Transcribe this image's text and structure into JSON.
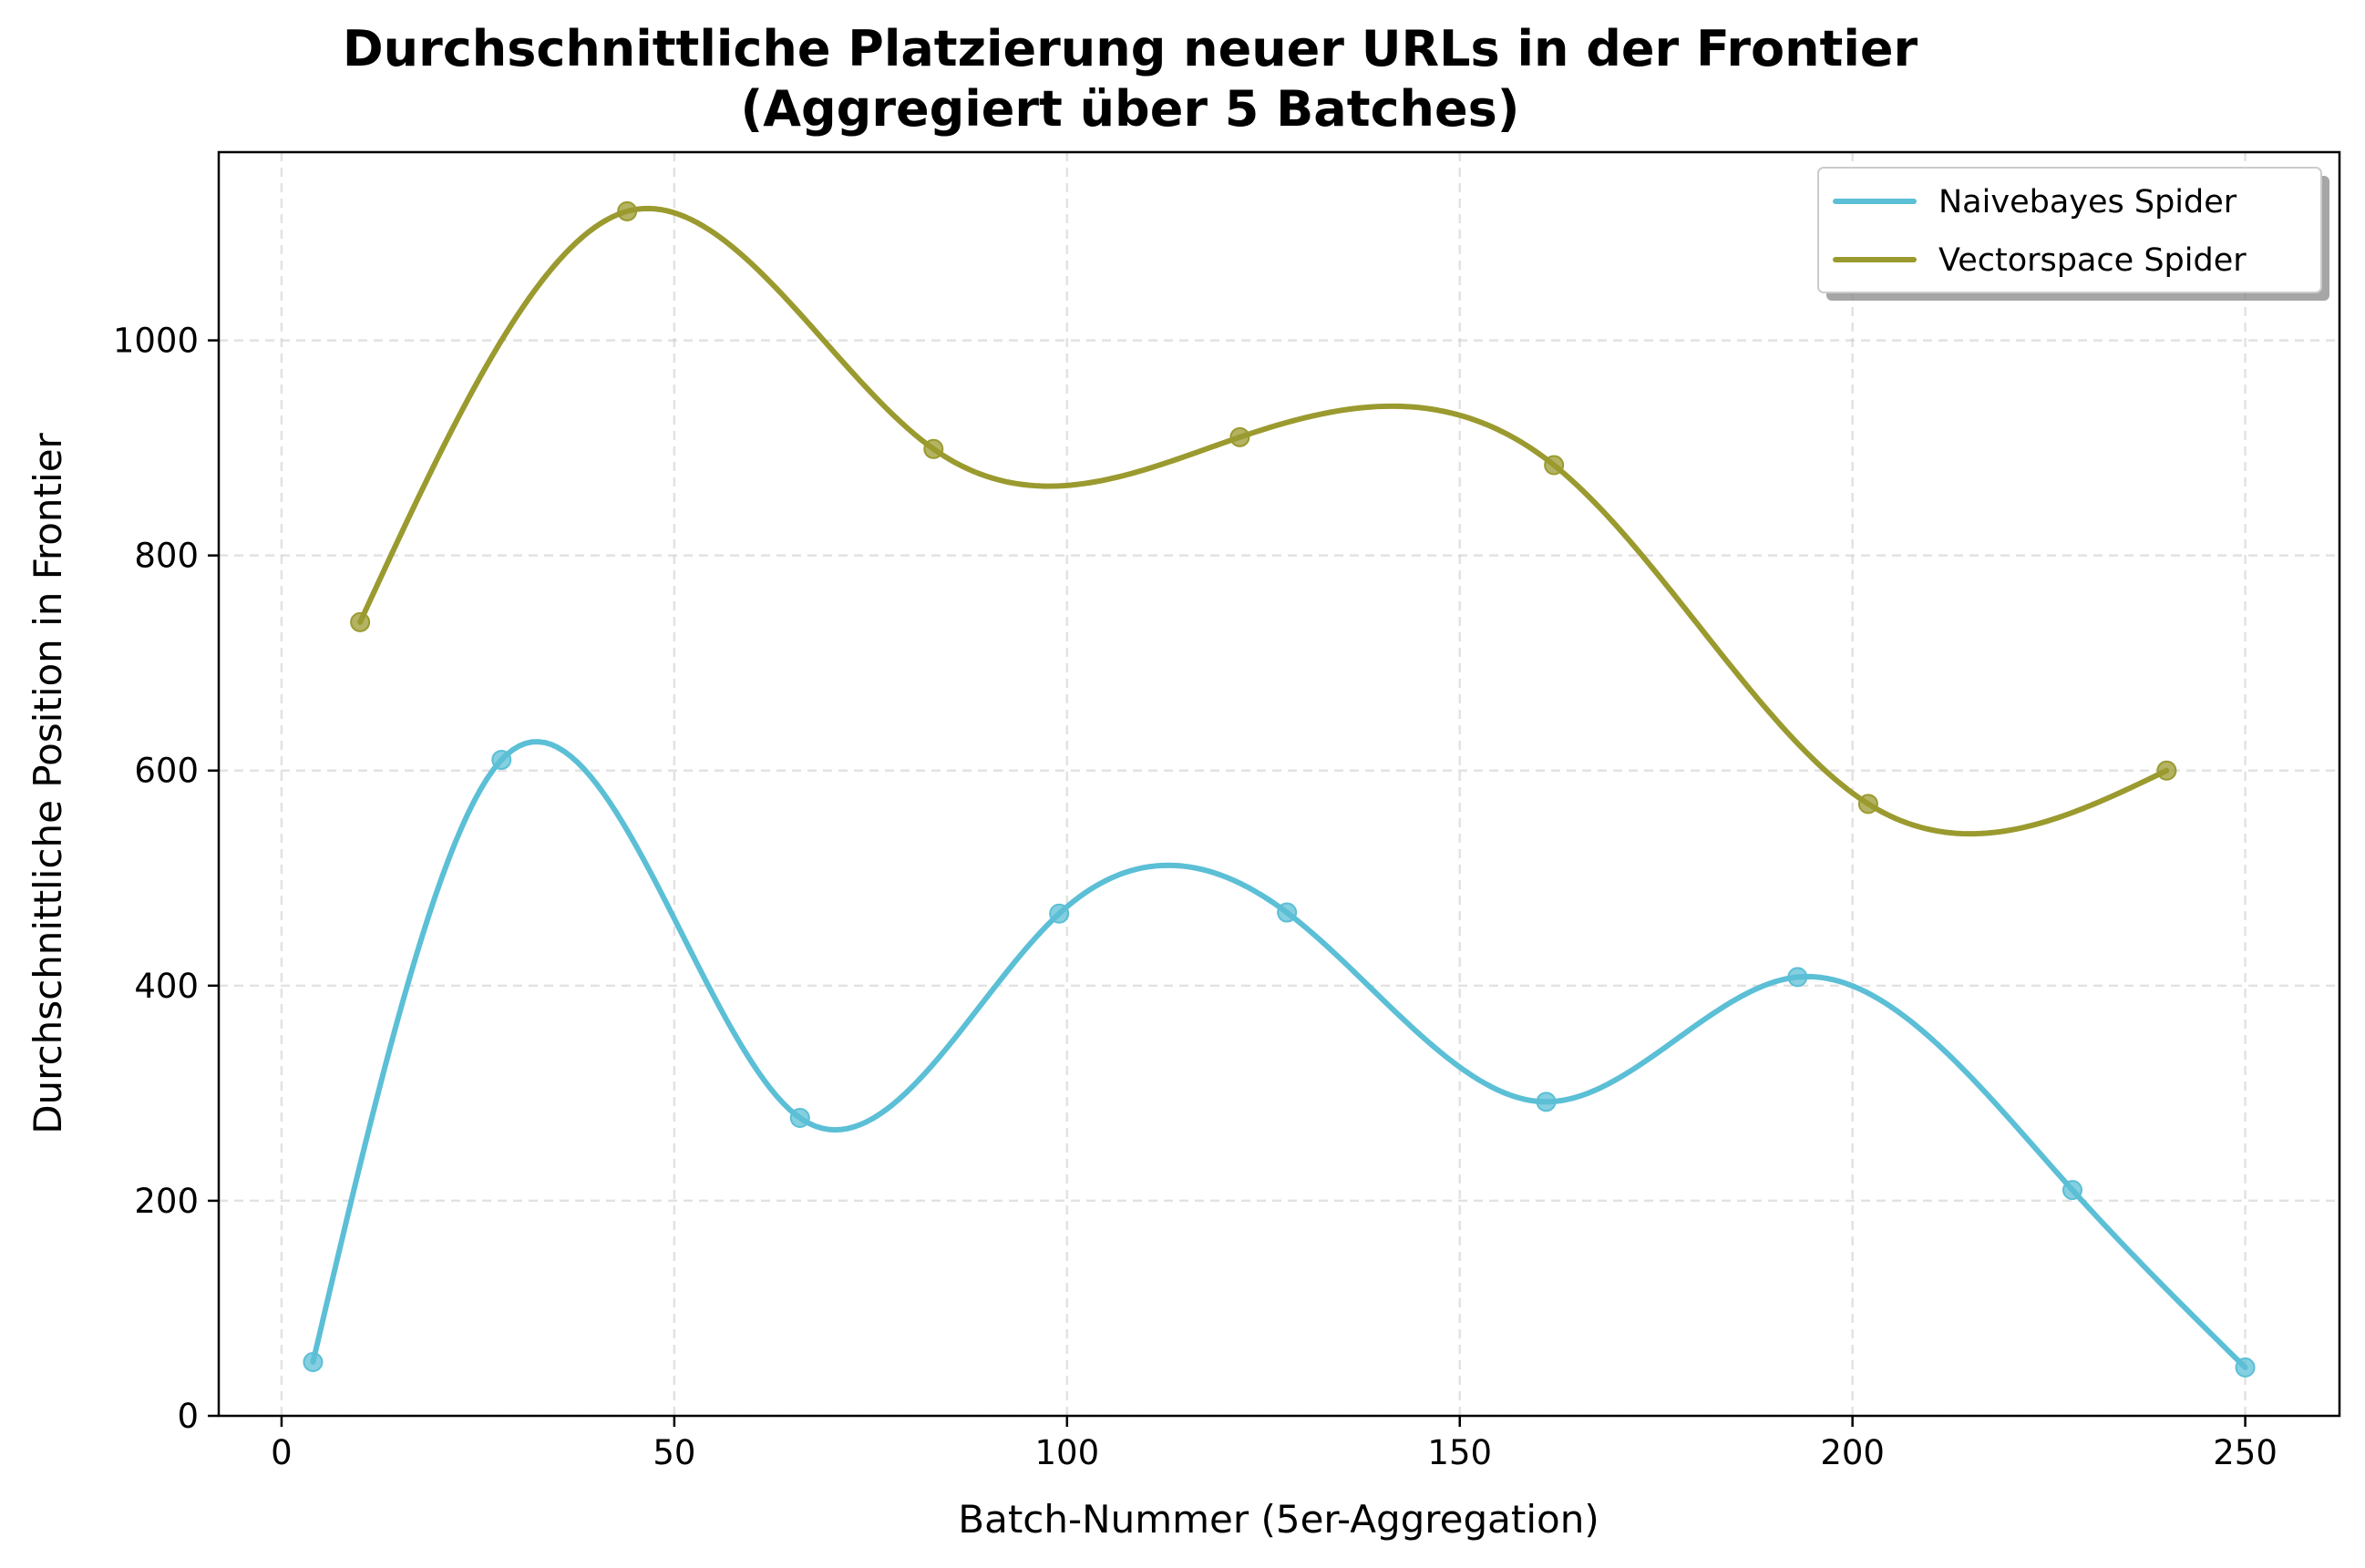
{
  "chart_data": {
    "type": "line",
    "title": [
      "Durchschnittliche Platzierung neuer URLs in der Frontier",
      "(Aggregiert über 5 Batches)"
    ],
    "xlabel": "Batch-Nummer (5er-Aggregation)",
    "ylabel": "Durchschnittliche Position in Frontier",
    "xlim": [
      -8,
      262
    ],
    "ylim": [
      0,
      1175
    ],
    "xticks": [
      0,
      50,
      100,
      150,
      200,
      250
    ],
    "yticks": [
      0,
      200,
      400,
      600,
      800,
      1000
    ],
    "grid": true,
    "legend_position": "top-right",
    "smooth": true,
    "series": [
      {
        "name": "Naivebayes Spider",
        "color": "#5bbfd6",
        "x": [
          4,
          28,
          66,
          99,
          128,
          161,
          193,
          228,
          250
        ],
        "y": [
          50,
          610,
          277,
          467,
          468,
          292,
          408,
          210,
          45
        ]
      },
      {
        "name": "Vectorspace Spider",
        "color": "#9a9a2f",
        "x": [
          10,
          44,
          83,
          122,
          162,
          202,
          240
        ],
        "y": [
          738,
          1120,
          899,
          910,
          884,
          569,
          600
        ]
      }
    ]
  }
}
